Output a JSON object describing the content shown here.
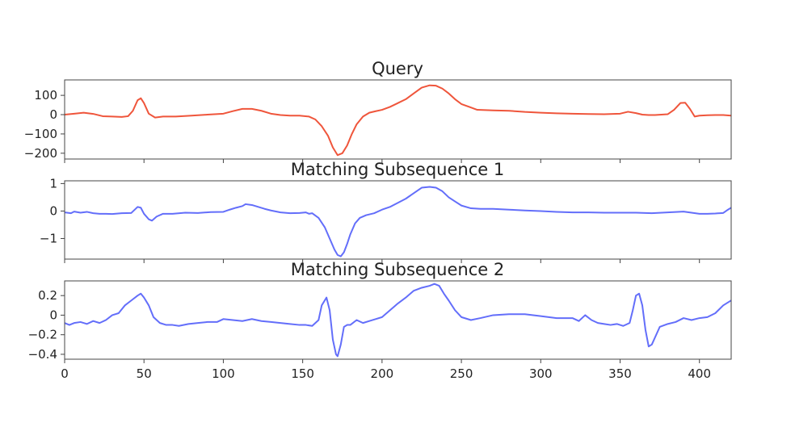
{
  "chart_data": [
    {
      "type": "line",
      "title": "Query",
      "xlim": [
        0,
        420
      ],
      "ylim": [
        -230,
        180
      ],
      "yticks": [
        100,
        0,
        -100,
        -200
      ],
      "ytick_labels": [
        "100",
        "0",
        "−100",
        "−200"
      ],
      "xticks": [
        0,
        50,
        100,
        150,
        200,
        250,
        300,
        350,
        400
      ],
      "xtick_labels": [],
      "grid": false,
      "series": [
        {
          "color": "#ef553b",
          "x": [
            0,
            6,
            12,
            18,
            24,
            30,
            36,
            40,
            43,
            46,
            48,
            50,
            53,
            57,
            62,
            70,
            80,
            90,
            100,
            106,
            112,
            118,
            124,
            130,
            136,
            142,
            148,
            154,
            158,
            162,
            166,
            169,
            172,
            175,
            178,
            181,
            184,
            188,
            192,
            196,
            200,
            205,
            210,
            215,
            220,
            225,
            230,
            234,
            238,
            242,
            246,
            250,
            255,
            260,
            270,
            280,
            290,
            300,
            310,
            320,
            330,
            340,
            350,
            355,
            360,
            364,
            368,
            372,
            376,
            380,
            384,
            388,
            391,
            394,
            397,
            400,
            405,
            410,
            415,
            420
          ],
          "y": [
            0,
            5,
            10,
            4,
            -8,
            -10,
            -12,
            -8,
            20,
            75,
            85,
            60,
            5,
            -15,
            -10,
            -10,
            -5,
            0,
            5,
            18,
            30,
            30,
            20,
            5,
            -2,
            -5,
            -5,
            -10,
            -25,
            -60,
            -110,
            -170,
            -210,
            -200,
            -160,
            -100,
            -50,
            -10,
            10,
            18,
            25,
            40,
            60,
            80,
            110,
            140,
            152,
            150,
            135,
            110,
            80,
            55,
            40,
            25,
            22,
            20,
            14,
            10,
            7,
            5,
            3,
            2,
            5,
            15,
            8,
            0,
            -2,
            -2,
            0,
            2,
            25,
            60,
            62,
            30,
            -10,
            -5,
            -3,
            -2,
            -2,
            -5
          ]
        }
      ]
    },
    {
      "type": "line",
      "title": "Matching Subsequence 1",
      "xlim": [
        0,
        420
      ],
      "ylim": [
        -1.75,
        1.1
      ],
      "yticks": [
        1,
        0,
        -1
      ],
      "ytick_labels": [
        "1",
        "0",
        "−1"
      ],
      "xticks": [
        0,
        50,
        100,
        150,
        200,
        250,
        300,
        350,
        400
      ],
      "xtick_labels": [],
      "grid": false,
      "series": [
        {
          "color": "#636efa",
          "x": [
            0,
            4,
            6,
            10,
            14,
            18,
            22,
            26,
            30,
            36,
            42,
            46,
            48,
            50,
            53,
            55,
            58,
            62,
            68,
            76,
            84,
            92,
            100,
            104,
            108,
            112,
            114,
            118,
            122,
            126,
            130,
            136,
            142,
            148,
            152,
            154,
            156,
            160,
            164,
            167,
            170,
            172,
            174,
            176,
            178,
            180,
            183,
            186,
            190,
            195,
            200,
            205,
            210,
            215,
            220,
            225,
            230,
            234,
            238,
            242,
            246,
            250,
            256,
            262,
            270,
            280,
            290,
            300,
            310,
            320,
            330,
            340,
            350,
            360,
            370,
            380,
            390,
            400,
            405,
            410,
            415,
            418,
            420
          ],
          "y": [
            -0.05,
            -0.08,
            -0.02,
            -0.06,
            -0.03,
            -0.08,
            -0.1,
            -0.1,
            -0.11,
            -0.08,
            -0.07,
            0.15,
            0.12,
            -0.1,
            -0.3,
            -0.35,
            -0.2,
            -0.1,
            -0.1,
            -0.06,
            -0.07,
            -0.04,
            -0.03,
            0.05,
            0.12,
            0.18,
            0.25,
            0.22,
            0.15,
            0.08,
            0.02,
            -0.05,
            -0.08,
            -0.07,
            -0.05,
            -0.1,
            -0.08,
            -0.25,
            -0.6,
            -1.0,
            -1.4,
            -1.6,
            -1.65,
            -1.5,
            -1.2,
            -0.85,
            -0.45,
            -0.25,
            -0.15,
            -0.08,
            0.05,
            0.15,
            0.3,
            0.45,
            0.65,
            0.85,
            0.88,
            0.85,
            0.72,
            0.5,
            0.35,
            0.2,
            0.1,
            0.08,
            0.08,
            0.05,
            0.02,
            0.0,
            -0.03,
            -0.05,
            -0.05,
            -0.06,
            -0.06,
            -0.06,
            -0.08,
            -0.05,
            -0.02,
            -0.1,
            -0.1,
            -0.09,
            -0.07,
            0.05,
            0.12
          ]
        }
      ]
    },
    {
      "type": "line",
      "title": "Matching Subsequence 2",
      "xlim": [
        0,
        420
      ],
      "ylim": [
        -0.45,
        0.35
      ],
      "yticks": [
        0.2,
        0,
        -0.2,
        -0.4
      ],
      "ytick_labels": [
        "0.2",
        "0",
        "−0.2",
        "−0.4"
      ],
      "xticks": [
        0,
        50,
        100,
        150,
        200,
        250,
        300,
        350,
        400
      ],
      "xtick_labels": [
        "0",
        "50",
        "100",
        "150",
        "200",
        "250",
        "300",
        "350",
        "400"
      ],
      "grid": false,
      "series": [
        {
          "color": "#636efa",
          "x": [
            0,
            3,
            6,
            10,
            14,
            18,
            22,
            26,
            30,
            34,
            38,
            42,
            46,
            48,
            50,
            53,
            56,
            60,
            64,
            68,
            72,
            78,
            84,
            90,
            96,
            100,
            106,
            112,
            118,
            124,
            130,
            136,
            142,
            148,
            152,
            156,
            160,
            162,
            165,
            167,
            169,
            171,
            172,
            174,
            176,
            178,
            180,
            184,
            188,
            192,
            196,
            200,
            205,
            210,
            215,
            220,
            225,
            230,
            233,
            236,
            239,
            242,
            246,
            250,
            256,
            262,
            270,
            280,
            290,
            300,
            310,
            320,
            324,
            328,
            332,
            336,
            340,
            344,
            348,
            352,
            356,
            358,
            360,
            362,
            364,
            366,
            368,
            370,
            375,
            380,
            385,
            390,
            395,
            400,
            405,
            410,
            415,
            420
          ],
          "y": [
            -0.08,
            -0.1,
            -0.08,
            -0.07,
            -0.09,
            -0.06,
            -0.08,
            -0.05,
            0.0,
            0.02,
            0.1,
            0.15,
            0.2,
            0.22,
            0.18,
            0.1,
            -0.02,
            -0.08,
            -0.1,
            -0.1,
            -0.11,
            -0.09,
            -0.08,
            -0.07,
            -0.07,
            -0.04,
            -0.05,
            -0.06,
            -0.04,
            -0.06,
            -0.07,
            -0.08,
            -0.09,
            -0.1,
            -0.1,
            -0.11,
            -0.05,
            0.1,
            0.18,
            0.05,
            -0.25,
            -0.4,
            -0.42,
            -0.3,
            -0.12,
            -0.1,
            -0.1,
            -0.05,
            -0.08,
            -0.06,
            -0.04,
            -0.02,
            0.05,
            0.12,
            0.18,
            0.25,
            0.28,
            0.3,
            0.32,
            0.3,
            0.22,
            0.15,
            0.05,
            -0.02,
            -0.05,
            -0.03,
            0.0,
            0.01,
            0.01,
            -0.01,
            -0.03,
            -0.03,
            -0.06,
            0.0,
            -0.05,
            -0.08,
            -0.09,
            -0.1,
            -0.09,
            -0.11,
            -0.08,
            0.05,
            0.2,
            0.22,
            0.1,
            -0.15,
            -0.32,
            -0.3,
            -0.12,
            -0.09,
            -0.07,
            -0.03,
            -0.05,
            -0.03,
            -0.02,
            0.02,
            0.1,
            0.15
          ]
        }
      ]
    }
  ]
}
